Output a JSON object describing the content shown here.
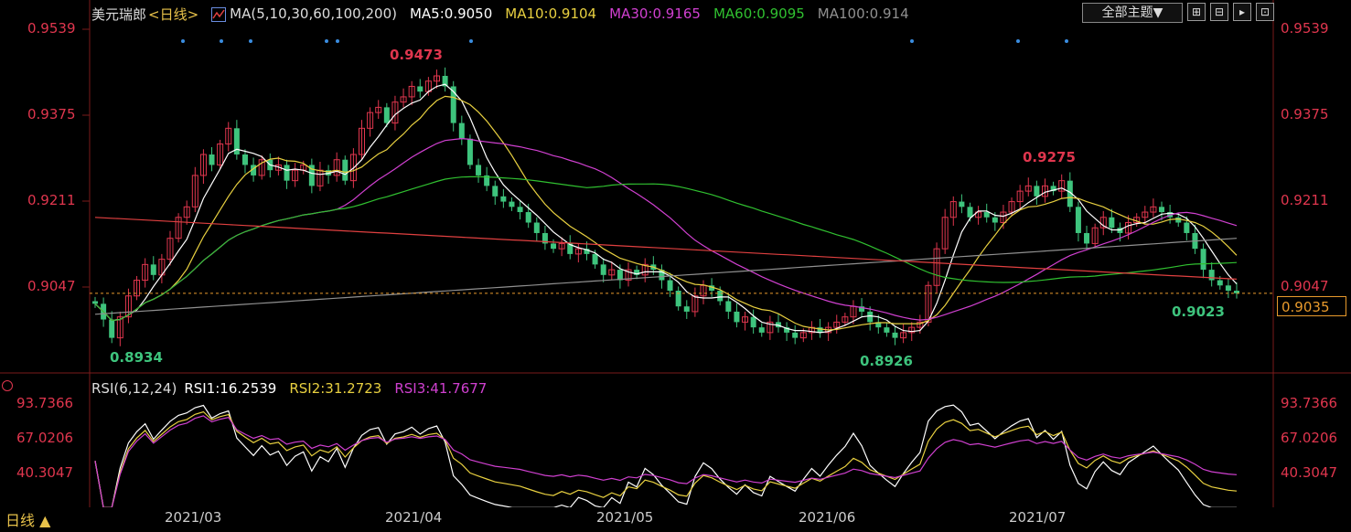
{
  "legend": {
    "symbol": "美元瑞郎",
    "period_tag": "<日线>",
    "ma_title": "MA(5,10,30,60,100,200)",
    "ma5": "MA5:0.9050",
    "ma10": "MA10:0.9104",
    "ma30": "MA30:0.9165",
    "ma60": "MA60:0.9095",
    "ma100": "MA100:0.914"
  },
  "rsi_legend": {
    "title": "RSI(6,12,24)",
    "rsi1": "RSI1:16.2539",
    "rsi2": "RSI2:31.2723",
    "rsi3": "RSI3:41.7677"
  },
  "toolbar": {
    "theme_label": "全部主题▼",
    "icons": [
      "grid-icon",
      "layout-icon",
      "play-icon",
      "expand-icon"
    ]
  },
  "price_axis": {
    "ticks": [
      "0.9539",
      "0.9375",
      "0.9211",
      "0.9047"
    ],
    "current_price": "0.9035"
  },
  "rsi_axis": {
    "ticks": [
      "93.7366",
      "67.0206",
      "40.3047"
    ]
  },
  "x_axis": {
    "labels": [
      "2021/03",
      "2021/04",
      "2021/05",
      "2021/06",
      "2021/07"
    ]
  },
  "period_button": "日线 ▲",
  "annotations": {
    "high1": "0.9473",
    "high2": "0.9275",
    "low1": "0.8934",
    "low2": "0.8926",
    "last_low": "0.9023"
  },
  "colors": {
    "up": "#e0364e",
    "down": "#3ec47d",
    "ma5": "#ffffff",
    "ma10": "#e8d040",
    "ma30": "#d040d0",
    "ma60": "#30c030",
    "ma100": "#909090",
    "ma200": "#e04040",
    "rsi1": "#ffffff",
    "rsi2": "#e8d040",
    "rsi3": "#d040d0"
  },
  "chart_data": {
    "type": "candlestick",
    "title": "美元瑞郎<日线>",
    "ylim": [
      0.892,
      0.955
    ],
    "x_labels": [
      "2021/03",
      "2021/04",
      "2021/05",
      "2021/06",
      "2021/07"
    ],
    "closes": [
      0.9015,
      0.8985,
      0.895,
      0.899,
      0.903,
      0.906,
      0.909,
      0.907,
      0.91,
      0.914,
      0.918,
      0.92,
      0.926,
      0.93,
      0.928,
      0.932,
      0.935,
      0.93,
      0.928,
      0.926,
      0.929,
      0.927,
      0.928,
      0.925,
      0.927,
      0.928,
      0.924,
      0.927,
      0.926,
      0.929,
      0.925,
      0.93,
      0.935,
      0.938,
      0.939,
      0.936,
      0.94,
      0.941,
      0.943,
      0.942,
      0.944,
      0.945,
      0.943,
      0.936,
      0.933,
      0.928,
      0.926,
      0.924,
      0.922,
      0.921,
      0.92,
      0.919,
      0.917,
      0.915,
      0.913,
      0.912,
      0.913,
      0.911,
      0.912,
      0.911,
      0.909,
      0.907,
      0.908,
      0.906,
      0.908,
      0.907,
      0.909,
      0.908,
      0.906,
      0.904,
      0.901,
      0.9,
      0.903,
      0.905,
      0.904,
      0.902,
      0.9,
      0.898,
      0.899,
      0.897,
      0.896,
      0.898,
      0.897,
      0.896,
      0.895,
      0.896,
      0.897,
      0.896,
      0.897,
      0.898,
      0.899,
      0.901,
      0.9,
      0.898,
      0.897,
      0.896,
      0.895,
      0.896,
      0.897,
      0.898,
      0.905,
      0.912,
      0.918,
      0.921,
      0.92,
      0.918,
      0.919,
      0.918,
      0.917,
      0.919,
      0.921,
      0.923,
      0.924,
      0.922,
      0.924,
      0.923,
      0.925,
      0.92,
      0.915,
      0.913,
      0.916,
      0.918,
      0.916,
      0.915,
      0.917,
      0.918,
      0.919,
      0.92,
      0.919,
      0.918,
      0.917,
      0.915,
      0.912,
      0.908,
      0.906,
      0.905,
      0.904,
      0.9035
    ],
    "series": [
      {
        "name": "MA5",
        "last": 0.905
      },
      {
        "name": "MA10",
        "last": 0.9104
      },
      {
        "name": "MA30",
        "last": 0.9165
      },
      {
        "name": "MA60",
        "last": 0.9095
      },
      {
        "name": "MA100",
        "last": 0.914
      }
    ],
    "rsi": {
      "ylim": [
        25,
        100
      ],
      "ticks": [
        93.7366,
        67.0206,
        40.3047
      ],
      "last": {
        "rsi1": 16.2539,
        "rsi2": 31.2723,
        "rsi3": 41.7677
      }
    }
  }
}
